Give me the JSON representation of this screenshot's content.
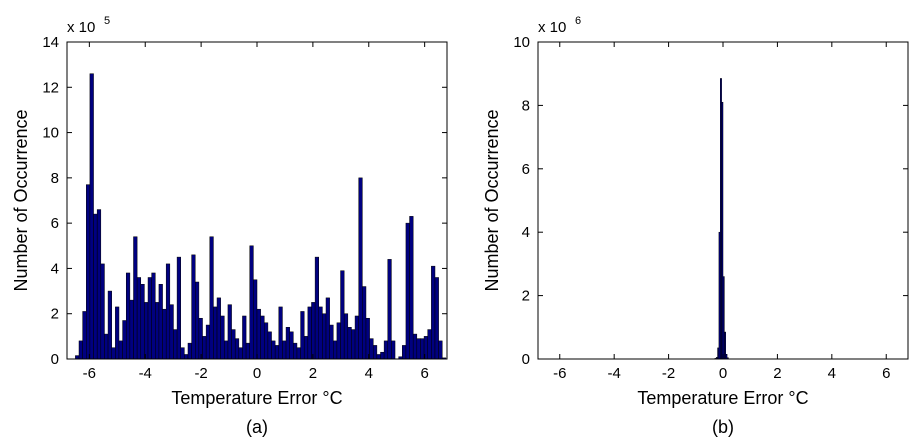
{
  "chart_data": [
    {
      "type": "bar",
      "panel_caption": "(a)",
      "xlabel": "Temperature Error °C",
      "ylabel": "Number of Occurrence",
      "y_scale_base": "x 10",
      "y_scale_exp": "5",
      "xlim": [
        -6.8,
        6.8
      ],
      "ylim": [
        0,
        14
      ],
      "x_ticks": [
        "-6",
        "-4",
        "-2",
        "0",
        "2",
        "4",
        "6"
      ],
      "y_ticks": [
        "0",
        "2",
        "4",
        "6",
        "8",
        "10",
        "12",
        "14"
      ],
      "bar_color": "#000080",
      "bin_start": -6.5,
      "bin_width": 0.13,
      "values": [
        0.15,
        0.8,
        2.1,
        7.7,
        12.6,
        6.4,
        6.6,
        4.2,
        1.1,
        3.0,
        0.5,
        2.3,
        0.8,
        1.7,
        3.8,
        2.6,
        5.4,
        3.6,
        3.3,
        2.5,
        3.6,
        3.8,
        2.5,
        3.3,
        2.2,
        4.2,
        2.4,
        1.3,
        4.5,
        0.5,
        0.2,
        0.7,
        4.6,
        3.4,
        1.8,
        1.0,
        1.5,
        5.4,
        2.3,
        2.7,
        1.9,
        0.8,
        2.4,
        1.3,
        0.9,
        0.5,
        1.9,
        0.7,
        5.0,
        3.5,
        2.2,
        1.9,
        1.6,
        1.2,
        0.8,
        0.6,
        2.3,
        0.8,
        1.4,
        1.2,
        0.7,
        0.5,
        2.1,
        1.0,
        2.3,
        2.5,
        4.5,
        2.3,
        2.0,
        2.7,
        1.5,
        0.8,
        1.6,
        3.9,
        2.0,
        1.4,
        1.3,
        1.9,
        8.0,
        3.2,
        1.8,
        0.9,
        0.6,
        0.2,
        0.3,
        0.8,
        4.4,
        0.8,
        0.0,
        0.1,
        0.6,
        6.0,
        6.3,
        1.1,
        0.9,
        0.9,
        1.0,
        1.3,
        4.1,
        3.6,
        0.8,
        0.05
      ]
    },
    {
      "type": "bar",
      "panel_caption": "(b)",
      "xlabel": "Temperature Error °C",
      "ylabel": "Number of Occurrence",
      "y_scale_base": "x 10",
      "y_scale_exp": "6",
      "xlim": [
        -6.8,
        6.8
      ],
      "ylim": [
        0,
        10
      ],
      "x_ticks": [
        "-6",
        "-4",
        "-2",
        "0",
        "2",
        "4",
        "6"
      ],
      "y_ticks": [
        "0",
        "2",
        "4",
        "6",
        "8",
        "10"
      ],
      "bar_color": "#000080",
      "bin_start": -0.3,
      "bin_width": 0.05,
      "values": [
        0.02,
        0.05,
        0.35,
        4.0,
        8.85,
        8.1,
        2.6,
        0.85,
        0.15,
        0.04
      ]
    }
  ]
}
